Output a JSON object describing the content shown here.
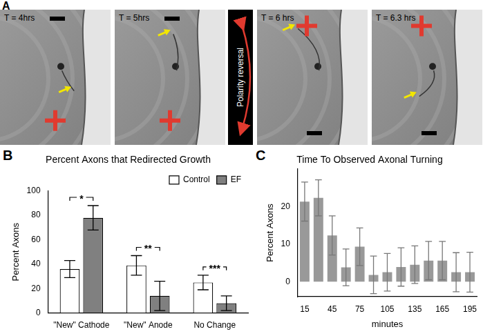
{
  "panel_a": {
    "panel_label": "A",
    "frames": [
      {
        "time": "T = 4hrs"
      },
      {
        "time": "T = 5hrs"
      },
      {
        "time": "T = 6 hrs"
      },
      {
        "time": "T = 6.3 hrs"
      }
    ],
    "divider": "Polarity reversal"
  },
  "chart_data": [
    {
      "type": "bar",
      "panel_label": "B",
      "title": "Percent Axons that Redirected Growth",
      "y_label": "Percent Axons",
      "categories": [
        "\"New\" Cathode",
        "\"New\" Anode",
        "No Change"
      ],
      "series": [
        {
          "name": "Control",
          "color": "#ffffff",
          "values": [
            36,
            39,
            25
          ],
          "errors": [
            7,
            8,
            6
          ]
        },
        {
          "name": "EF",
          "color": "#808080",
          "values": [
            78,
            14,
            8
          ],
          "errors": [
            10,
            12,
            6
          ]
        }
      ],
      "ylim": [
        0,
        100
      ],
      "yticks": [
        0,
        20,
        40,
        60,
        80,
        100
      ],
      "grid": false,
      "legend": "top right",
      "annotations": [
        {
          "category": "\"New\" Cathode",
          "text": "*"
        },
        {
          "category": "\"New\" Anode",
          "text": "**"
        },
        {
          "category": "No Change",
          "text": "***"
        }
      ]
    },
    {
      "type": "bar",
      "panel_label": "C",
      "title": "Time To Observed Axonal Turning",
      "x_label": "minutes",
      "y_label": "Percent Axons",
      "categories": [
        15,
        null,
        45,
        null,
        75,
        null,
        105,
        null,
        135,
        null,
        165,
        null,
        195
      ],
      "values": [
        21.3,
        22.3,
        12.3,
        3.8,
        9.3,
        1.8,
        2.5,
        3.9,
        4.5,
        5.6,
        5.6,
        2.5,
        2.5
      ],
      "errors": [
        5.2,
        4.8,
        5.2,
        4.9,
        5,
        5,
        5,
        5.1,
        5,
        5.1,
        5.1,
        5.2,
        5.3
      ],
      "color": "#999999",
      "ylim": [
        -4,
        30
      ],
      "yticks": [
        0,
        10,
        20
      ],
      "grid": false
    }
  ]
}
